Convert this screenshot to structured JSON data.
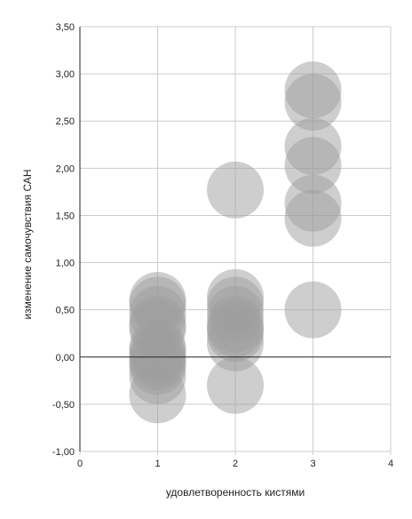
{
  "chart_data": {
    "type": "scatter",
    "style": "bubble",
    "xlabel": "удовлетворенность кистями",
    "ylabel": "изменение самочувствия САН",
    "xlim": [
      0,
      4
    ],
    "ylim": [
      -1.0,
      3.5
    ],
    "x_ticks": [
      "0",
      "1",
      "2",
      "3",
      "4"
    ],
    "y_ticks": [
      "-1,00",
      "-0,50",
      "0,00",
      "0,50",
      "1,00",
      "1,50",
      "2,00",
      "2,50",
      "3,00",
      "3,50"
    ],
    "grid": true,
    "legend": "none",
    "colors": {
      "bubble": "#9e9e9e",
      "grid": "#cccccc",
      "axis": "#222222"
    },
    "points": [
      {
        "x": 1,
        "y": 0.6
      },
      {
        "x": 1,
        "y": 0.55
      },
      {
        "x": 1,
        "y": 0.45
      },
      {
        "x": 1,
        "y": 0.35
      },
      {
        "x": 1,
        "y": 0.3
      },
      {
        "x": 1,
        "y": 0.1
      },
      {
        "x": 1,
        "y": 0.05
      },
      {
        "x": 1,
        "y": 0.0
      },
      {
        "x": 1,
        "y": -0.05
      },
      {
        "x": 1,
        "y": -0.1
      },
      {
        "x": 1,
        "y": -0.2
      },
      {
        "x": 1,
        "y": -0.4
      },
      {
        "x": 2,
        "y": 1.77
      },
      {
        "x": 2,
        "y": 0.63
      },
      {
        "x": 2,
        "y": 0.55
      },
      {
        "x": 2,
        "y": 0.45
      },
      {
        "x": 2,
        "y": 0.35
      },
      {
        "x": 2,
        "y": 0.3
      },
      {
        "x": 2,
        "y": 0.25
      },
      {
        "x": 2,
        "y": 0.15
      },
      {
        "x": 2,
        "y": -0.3
      },
      {
        "x": 3,
        "y": 2.83
      },
      {
        "x": 3,
        "y": 2.7
      },
      {
        "x": 3,
        "y": 2.23
      },
      {
        "x": 3,
        "y": 2.03
      },
      {
        "x": 3,
        "y": 1.63
      },
      {
        "x": 3,
        "y": 1.47
      },
      {
        "x": 3,
        "y": 0.5
      }
    ]
  }
}
